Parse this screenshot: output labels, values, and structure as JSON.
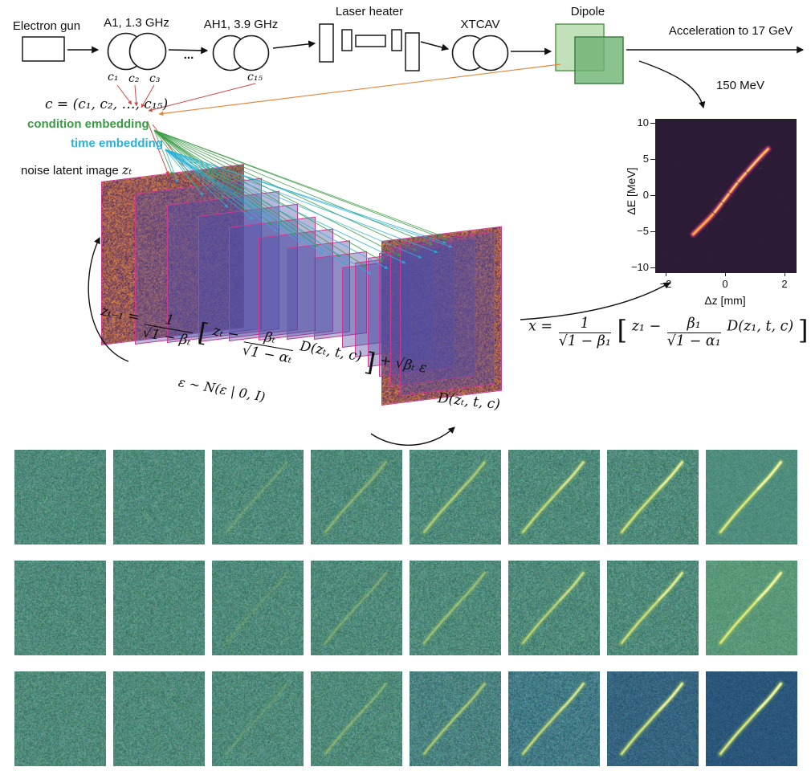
{
  "beamline": {
    "electron_gun": "Electron gun",
    "a1": "A1, 1.3 GHz",
    "dots": "...",
    "ah1": "AH1, 3.9 GHz",
    "laser_heater": "Laser heater",
    "xtcav": "XTCAV",
    "dipole": "Dipole",
    "acceleration": "Acceleration to 17 GeV",
    "c1": "c₁",
    "c2": "c₂",
    "c3": "c₃",
    "c15": "c₁₅"
  },
  "embedding": {
    "c_vector": "c = (c₁, c₂, …, c₁₅)",
    "condition": "condition embedding",
    "time": "time embedding",
    "noise_latent": "noise latent image",
    "zt": "zₜ"
  },
  "formulas": {
    "sqrt": "√",
    "backward": {
      "lhs": "zₜ₋₁ =",
      "f1num": "1",
      "f1den": "1 − βₜ",
      "open": "[",
      "t1": "zₜ −",
      "f2num": "βₜ",
      "f2den": "1 − αₜ",
      "t2": "D(zₜ, t, c)",
      "close": "]",
      "tail": "+ √βₜ ε"
    },
    "noise_dist": "ε ∼ N(ε | 0, I)",
    "decoder": "D(zₜ, t, c)",
    "forward": {
      "lhs": "x =",
      "f1num": "1",
      "f1den": "1 − β₁",
      "open": "[",
      "t1": "z₁ −",
      "f2num": "β₁",
      "f2den": "1 − α₁",
      "t2": "D(z₁, t, c)",
      "close": "]"
    }
  },
  "colors": {
    "condition_green": "#3a9b45",
    "time_cyan": "#29b2d8",
    "plane_border": "#cf3a90",
    "plane_fill": "rgba(80,78,165,0.40)",
    "red_arrow": "#cc3333",
    "orange_arrow": "#e0883a"
  },
  "plot": {
    "energy": "150 MeV",
    "ylabel": "ΔE [MeV]",
    "xlabel": "Δz [mm]",
    "yticks": [
      "10",
      "5",
      "0",
      "−5",
      "−10"
    ],
    "xticks": [
      "−2",
      "0",
      "2"
    ],
    "bg": "#2c1b35",
    "streak_points": [
      [
        -1.1,
        -5.3
      ],
      [
        -0.75,
        -3.9
      ],
      [
        -0.4,
        -2.4
      ],
      [
        -0.12,
        -0.9
      ],
      [
        0.12,
        0.4
      ],
      [
        0.4,
        1.9
      ],
      [
        0.7,
        3.3
      ],
      [
        1.0,
        4.7
      ],
      [
        1.25,
        5.8
      ],
      [
        1.42,
        6.5
      ]
    ]
  },
  "grid": {
    "bg_default": "#4f8a7a",
    "noise_default": 26,
    "streak": {
      "glow": "#9fc75f",
      "mid": "#c9dc6a",
      "core": "#eef589",
      "hot": "#f9fdba"
    },
    "rows": [
      {
        "cells": [
          {
            "s": 0
          },
          {
            "s": 0
          },
          {
            "s": 0.15
          },
          {
            "s": 0.3
          },
          {
            "s": 0.55
          },
          {
            "s": 0.7
          },
          {
            "s": 0.85
          },
          {
            "s": 1,
            "bg": "#4f8d7d",
            "n": 14
          }
        ]
      },
      {
        "cells": [
          {
            "s": 0
          },
          {
            "s": 0
          },
          {
            "s": 0.1
          },
          {
            "s": 0.22
          },
          {
            "s": 0.4
          },
          {
            "s": 0.6
          },
          {
            "s": 0.8
          },
          {
            "s": 1,
            "bg": "#5a9878",
            "n": 16
          }
        ]
      },
      {
        "cells": [
          {
            "s": 0
          },
          {
            "s": 0
          },
          {
            "s": 0.1
          },
          {
            "s": 0.28
          },
          {
            "s": 0.5,
            "bg": "#4a8280"
          },
          {
            "s": 0.7,
            "bg": "#427a85"
          },
          {
            "s": 0.9,
            "bg": "#35647f",
            "n": 18
          },
          {
            "s": 1,
            "bg": "#2b567a",
            "n": 12
          }
        ]
      }
    ]
  }
}
